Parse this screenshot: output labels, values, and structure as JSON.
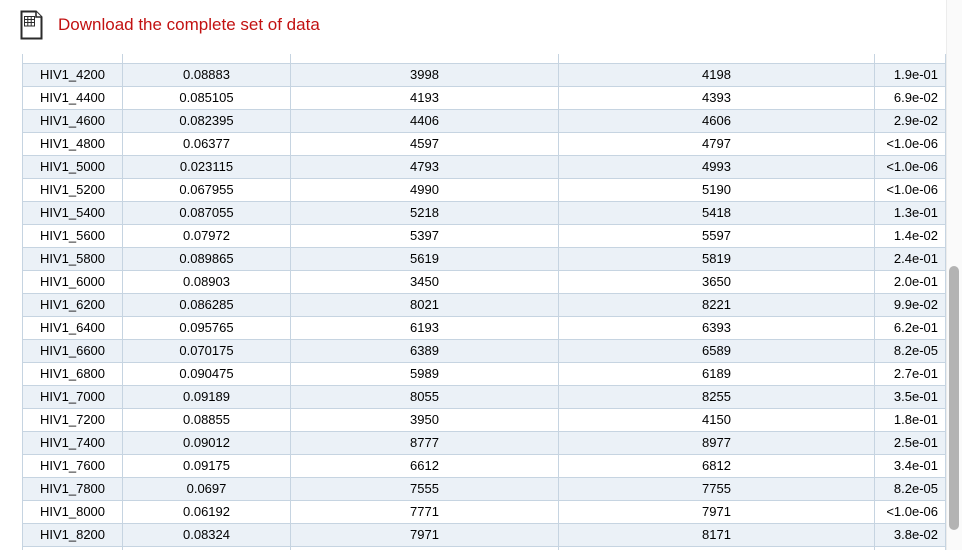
{
  "header": {
    "download_link_label": "Download the complete set of data"
  },
  "table": {
    "rows": [
      [
        "HIV1_4200",
        "0.08883",
        "3998",
        "4198",
        "1.9e-01"
      ],
      [
        "HIV1_4400",
        "0.085105",
        "4193",
        "4393",
        "6.9e-02"
      ],
      [
        "HIV1_4600",
        "0.082395",
        "4406",
        "4606",
        "2.9e-02"
      ],
      [
        "HIV1_4800",
        "0.06377",
        "4597",
        "4797",
        "<1.0e-06"
      ],
      [
        "HIV1_5000",
        "0.023115",
        "4793",
        "4993",
        "<1.0e-06"
      ],
      [
        "HIV1_5200",
        "0.067955",
        "4990",
        "5190",
        "<1.0e-06"
      ],
      [
        "HIV1_5400",
        "0.087055",
        "5218",
        "5418",
        "1.3e-01"
      ],
      [
        "HIV1_5600",
        "0.07972",
        "5397",
        "5597",
        "1.4e-02"
      ],
      [
        "HIV1_5800",
        "0.089865",
        "5619",
        "5819",
        "2.4e-01"
      ],
      [
        "HIV1_6000",
        "0.08903",
        "3450",
        "3650",
        "2.0e-01"
      ],
      [
        "HIV1_6200",
        "0.086285",
        "8021",
        "8221",
        "9.9e-02"
      ],
      [
        "HIV1_6400",
        "0.095765",
        "6193",
        "6393",
        "6.2e-01"
      ],
      [
        "HIV1_6600",
        "0.070175",
        "6389",
        "6589",
        "8.2e-05"
      ],
      [
        "HIV1_6800",
        "0.090475",
        "5989",
        "6189",
        "2.7e-01"
      ],
      [
        "HIV1_7000",
        "0.09189",
        "8055",
        "8255",
        "3.5e-01"
      ],
      [
        "HIV1_7200",
        "0.08855",
        "3950",
        "4150",
        "1.8e-01"
      ],
      [
        "HIV1_7400",
        "0.09012",
        "8777",
        "8977",
        "2.5e-01"
      ],
      [
        "HIV1_7600",
        "0.09175",
        "6612",
        "6812",
        "3.4e-01"
      ],
      [
        "HIV1_7800",
        "0.0697",
        "7555",
        "7755",
        "8.2e-05"
      ],
      [
        "HIV1_8000",
        "0.06192",
        "7771",
        "7971",
        "<1.0e-06"
      ],
      [
        "HIV1_8200",
        "0.08324",
        "7971",
        "8171",
        "3.8e-02"
      ]
    ]
  },
  "colors": {
    "link_red": "#c21111",
    "row_stripe": "#ebf1f7",
    "table_border": "#c6d4e1",
    "scrollbar_thumb": "#b3b3b3"
  }
}
